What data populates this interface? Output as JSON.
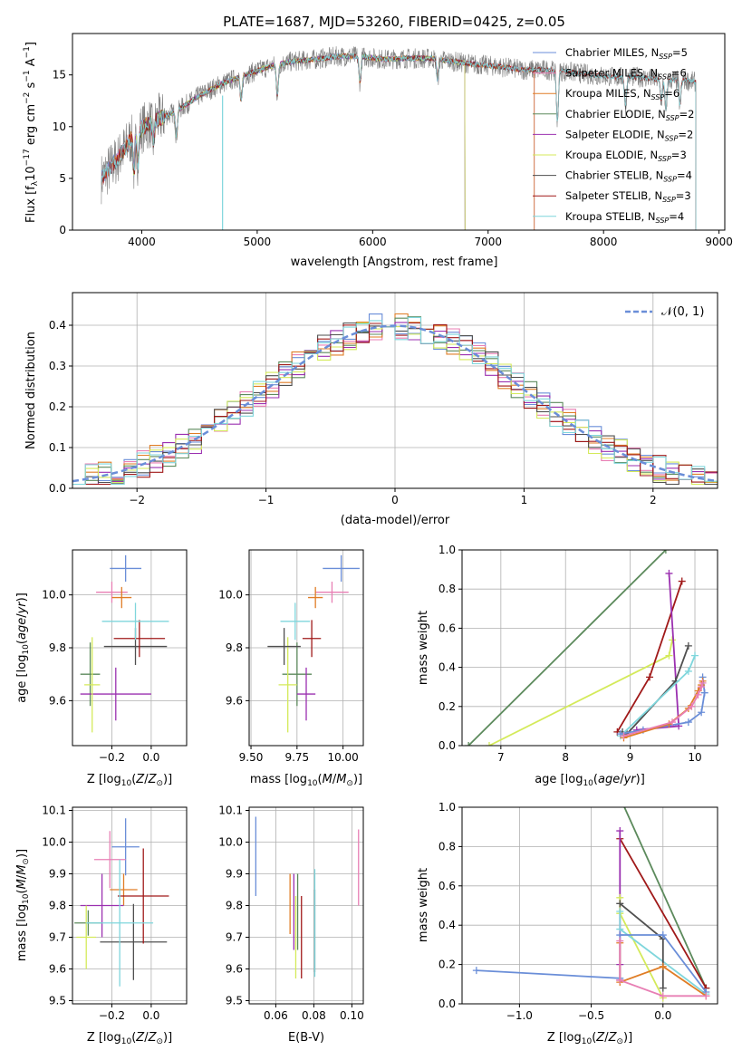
{
  "figure": {
    "title": "PLATE=1687, MJD=53260, FIBERID=0425, z=0.05",
    "colors": {
      "Chabrier MILES": "#6a8ed8",
      "Salpeter MILES": "#e87fb4",
      "Kroupa MILES": "#e07d26",
      "Chabrier ELODIE": "#5c8a5c",
      "Salpeter ELODIE": "#9b30b0",
      "Kroupa ELODIE": "#d4ea5a",
      "Chabrier STELIB": "#4f4f4f",
      "Salpeter STELIB": "#a01919",
      "Kroupa STELIB": "#7fd6dc",
      "spectrum_data": "#808080"
    }
  },
  "chart_data": [
    {
      "id": "spectrum",
      "type": "line",
      "xlabel": "wavelength [Angstrom, rest frame]",
      "ylabel": "Flux [f_λ10^-17 erg cm^-2 s^-1 A^-1]",
      "xlim": [
        3400,
        9050
      ],
      "ylim": [
        0,
        19
      ],
      "xticks": [
        "4000",
        "5000",
        "6000",
        "7000",
        "8000",
        "9000"
      ],
      "yticks": [
        "0",
        "5",
        "10",
        "15"
      ],
      "continuum_x": [
        3650,
        3800,
        3950,
        4100,
        4300,
        4500,
        4700,
        4900,
        5100,
        5300,
        5500,
        5700,
        5900,
        6100,
        6300,
        6500,
        6700,
        6900,
        7100,
        7300,
        7500,
        7700,
        7900,
        8100,
        8300,
        8500,
        8700,
        8800
      ],
      "continuum_y": [
        5.0,
        7.0,
        9.5,
        10.5,
        11.5,
        13.0,
        14.2,
        15.0,
        15.8,
        16.3,
        16.5,
        16.8,
        16.8,
        16.5,
        16.6,
        16.6,
        16.3,
        16.0,
        15.8,
        15.5,
        15.5,
        15.3,
        15.0,
        14.8,
        14.8,
        14.5,
        14.5,
        14.3
      ],
      "legend": [
        {
          "label": "Chabrier MILES",
          "sub": "SSP",
          "n": "5"
        },
        {
          "label": "Salpeter MILES",
          "sub": "SSP",
          "n": "6"
        },
        {
          "label": "Kroupa MILES",
          "sub": "SSP",
          "n": "6"
        },
        {
          "label": "Chabrier ELODIE",
          "sub": "SSP",
          "n": "2"
        },
        {
          "label": "Salpeter ELODIE",
          "sub": "SSP",
          "n": "2"
        },
        {
          "label": "Kroupa ELODIE",
          "sub": "SSP",
          "n": "3"
        },
        {
          "label": "Chabrier STELIB",
          "sub": "SSP",
          "n": "4"
        },
        {
          "label": "Salpeter STELIB",
          "sub": "SSP",
          "n": "3"
        },
        {
          "label": "Kroupa STELIB",
          "sub": "SSP",
          "n": "4"
        }
      ]
    },
    {
      "id": "residuals",
      "type": "histogram",
      "xlabel": "(data-model)/error",
      "ylabel": "Normed distribution",
      "xlim": [
        -2.5,
        2.5
      ],
      "ylim": [
        0,
        0.48
      ],
      "xticks": [
        "−2",
        "−1",
        "0",
        "1",
        "2"
      ],
      "yticks": [
        "0.0",
        "0.1",
        "0.2",
        "0.3",
        "0.4"
      ],
      "bin_width": 0.1,
      "bin_start": -2.5,
      "legend_label": "𝒩(0, 1)"
    },
    {
      "id": "age_vs_Z",
      "type": "errorbar",
      "xlabel": "Z [log10(Z/Z⊙)]",
      "ylabel": "age [log10(age/yr)]",
      "xlim": [
        -0.4,
        0.18
      ],
      "ylim": [
        9.43,
        10.17
      ],
      "xticks": [
        "−0.2",
        "0.0"
      ],
      "yticks": [
        "9.6",
        "9.8",
        "10.0"
      ],
      "points": [
        {
          "m": "Chabrier MILES",
          "x": -0.13,
          "y": 10.1,
          "xe": 0.08,
          "ye": 0.05
        },
        {
          "m": "Salpeter MILES",
          "x": -0.2,
          "y": 10.01,
          "xe": 0.08,
          "ye": 0.04
        },
        {
          "m": "Kroupa MILES",
          "x": -0.15,
          "y": 9.99,
          "xe": 0.05,
          "ye": 0.04
        },
        {
          "m": "Chabrier ELODIE",
          "x": -0.31,
          "y": 9.7,
          "xe": 0.05,
          "ye": 0.12
        },
        {
          "m": "Salpeter ELODIE",
          "x": -0.18,
          "y": 9.625,
          "xe": 0.18,
          "ye": 0.1
        },
        {
          "m": "Kroupa ELODIE",
          "x": -0.3,
          "y": 9.66,
          "xe": 0.04,
          "ye": 0.18
        },
        {
          "m": "Chabrier STELIB",
          "x": -0.08,
          "y": 9.805,
          "xe": 0.16,
          "ye": 0.07
        },
        {
          "m": "Salpeter STELIB",
          "x": -0.06,
          "y": 9.835,
          "xe": 0.13,
          "ye": 0.07
        },
        {
          "m": "Kroupa STELIB",
          "x": -0.08,
          "y": 9.9,
          "xe": 0.17,
          "ye": 0.07
        }
      ]
    },
    {
      "id": "age_vs_mass",
      "type": "errorbar",
      "xlabel": "mass [log10(M/M⊙)]",
      "xlim": [
        9.49,
        10.11
      ],
      "ylim": [
        9.43,
        10.17
      ],
      "xticks": [
        "9.50",
        "9.75",
        "10.00"
      ],
      "yticks": [
        "9.6",
        "9.8",
        "10.0"
      ],
      "points": [
        {
          "m": "Chabrier MILES",
          "x": 9.99,
          "y": 10.1,
          "xe": 0.1,
          "ye": 0.05
        },
        {
          "m": "Salpeter MILES",
          "x": 9.94,
          "y": 10.01,
          "xe": 0.09,
          "ye": 0.04
        },
        {
          "m": "Kroupa MILES",
          "x": 9.85,
          "y": 9.99,
          "xe": 0.04,
          "ye": 0.04
        },
        {
          "m": "Chabrier ELODIE",
          "x": 9.75,
          "y": 9.7,
          "xe": 0.08,
          "ye": 0.12
        },
        {
          "m": "Salpeter ELODIE",
          "x": 9.8,
          "y": 9.625,
          "xe": 0.05,
          "ye": 0.1
        },
        {
          "m": "Kroupa ELODIE",
          "x": 9.7,
          "y": 9.66,
          "xe": 0.05,
          "ye": 0.18
        },
        {
          "m": "Chabrier STELIB",
          "x": 9.68,
          "y": 9.805,
          "xe": 0.09,
          "ye": 0.07
        },
        {
          "m": "Salpeter STELIB",
          "x": 9.83,
          "y": 9.835,
          "xe": 0.05,
          "ye": 0.07
        },
        {
          "m": "Kroupa STELIB",
          "x": 9.74,
          "y": 9.9,
          "xe": 0.08,
          "ye": 0.07
        }
      ]
    },
    {
      "id": "weight_vs_age",
      "type": "line",
      "xlabel": "age [log10(age/yr)]",
      "ylabel": "mass weight",
      "xlim": [
        6.4,
        10.35
      ],
      "ylim": [
        0,
        1
      ],
      "xticks": [
        "7",
        "8",
        "9",
        "10"
      ],
      "yticks": [
        "0.0",
        "0.2",
        "0.4",
        "0.6",
        "0.8",
        "1.0"
      ],
      "series": [
        {
          "m": "Chabrier ELODIE",
          "x": [
            6.5,
            9.55
          ],
          "y": [
            0.0,
            1.0
          ]
        },
        {
          "m": "Kroupa ELODIE",
          "x": [
            6.82,
            9.6,
            9.65
          ],
          "y": [
            0.0,
            0.46,
            0.54
          ]
        },
        {
          "m": "Salpeter STELIB",
          "x": [
            8.8,
            9.3,
            9.8
          ],
          "y": [
            0.07,
            0.35,
            0.84
          ]
        },
        {
          "m": "Salpeter ELODIE",
          "x": [
            9.6,
            9.75,
            9.1
          ],
          "y": [
            0.88,
            0.1,
            0.08
          ]
        },
        {
          "m": "Chabrier STELIB",
          "x": [
            8.88,
            8.95,
            9.7,
            9.9
          ],
          "y": [
            0.07,
            0.06,
            0.33,
            0.51
          ]
        },
        {
          "m": "Kroupa STELIB",
          "x": [
            8.85,
            9.9,
            10.0
          ],
          "y": [
            0.05,
            0.38,
            0.46
          ]
        },
        {
          "m": "Chabrier MILES",
          "x": [
            8.85,
            9.2,
            9.9,
            10.1,
            10.15,
            10.12
          ],
          "y": [
            0.06,
            0.08,
            0.12,
            0.17,
            0.27,
            0.35
          ]
        },
        {
          "m": "Kroupa MILES",
          "x": [
            8.9,
            9.6,
            9.9,
            10.05,
            10.1,
            10.12
          ],
          "y": [
            0.04,
            0.11,
            0.19,
            0.28,
            0.31,
            0.33
          ]
        },
        {
          "m": "Salpeter MILES",
          "x": [
            8.9,
            9.65,
            9.95,
            10.05,
            10.1,
            10.12
          ],
          "y": [
            0.05,
            0.12,
            0.2,
            0.26,
            0.3,
            0.32
          ]
        }
      ]
    },
    {
      "id": "mass_vs_Z",
      "type": "errorbar",
      "xlabel": "Z [log10(Z/Z⊙)]",
      "ylabel": "mass [log10(M/M⊙)]",
      "xlim": [
        -0.4,
        0.18
      ],
      "ylim": [
        9.49,
        10.11
      ],
      "xticks": [
        "−0.2",
        "0.0"
      ],
      "yticks": [
        "9.5",
        "9.6",
        "9.7",
        "9.8",
        "9.9",
        "10.0",
        "10.1"
      ],
      "points": [
        {
          "m": "Chabrier MILES",
          "x": -0.13,
          "y": 9.985,
          "xe": 0.07,
          "ye": 0.09
        },
        {
          "m": "Salpeter MILES",
          "x": -0.21,
          "y": 9.945,
          "xe": 0.08,
          "ye": 0.09
        },
        {
          "m": "Kroupa MILES",
          "x": -0.14,
          "y": 9.85,
          "xe": 0.07,
          "ye": 0.05
        },
        {
          "m": "Chabrier ELODIE",
          "x": -0.32,
          "y": 9.745,
          "xe": 0.07,
          "ye": 0.04
        },
        {
          "m": "Salpeter ELODIE",
          "x": -0.25,
          "y": 9.8,
          "xe": 0.11,
          "ye": 0.1
        },
        {
          "m": "Kroupa ELODIE",
          "x": -0.33,
          "y": 9.7,
          "xe": 0.05,
          "ye": 0.1
        },
        {
          "m": "Chabrier STELIB",
          "x": -0.09,
          "y": 9.685,
          "xe": 0.17,
          "ye": 0.12
        },
        {
          "m": "Salpeter STELIB",
          "x": -0.04,
          "y": 9.83,
          "xe": 0.13,
          "ye": 0.15
        },
        {
          "m": "Kroupa STELIB",
          "x": -0.16,
          "y": 9.745,
          "xe": 0.17,
          "ye": 0.2
        }
      ]
    },
    {
      "id": "mass_vs_ebv",
      "type": "errorbar",
      "xlabel": "E(B-V)",
      "xlim": [
        0.046,
        0.106
      ],
      "ylim": [
        9.49,
        10.11
      ],
      "xticks": [
        "0.06",
        "0.08",
        "0.10"
      ],
      "yticks": [
        "9.5",
        "9.6",
        "9.7",
        "9.8",
        "9.9",
        "10.0",
        "10.1"
      ],
      "points": [
        {
          "m": "Chabrier MILES",
          "x": 0.0495,
          "y": 9.955,
          "xe": 0,
          "ye": 0.125
        },
        {
          "m": "Salpeter MILES",
          "x": 0.1035,
          "y": 9.92,
          "xe": 0,
          "ye": 0.12
        },
        {
          "m": "Kroupa MILES",
          "x": 0.0675,
          "y": 9.805,
          "xe": 0,
          "ye": 0.095
        },
        {
          "m": "Chabrier ELODIE",
          "x": 0.0715,
          "y": 9.78,
          "xe": 0,
          "ye": 0.12
        },
        {
          "m": "Salpeter ELODIE",
          "x": 0.0695,
          "y": 9.78,
          "xe": 0,
          "ye": 0.12
        },
        {
          "m": "Kroupa ELODIE",
          "x": 0.0705,
          "y": 9.7,
          "xe": 0,
          "ye": 0.13
        },
        {
          "m": "Chabrier STELIB",
          "x": 0.0805,
          "y": 9.72,
          "xe": 0,
          "ye": 0.13
        },
        {
          "m": "Salpeter STELIB",
          "x": 0.0735,
          "y": 9.7,
          "xe": 0,
          "ye": 0.13
        },
        {
          "m": "Kroupa STELIB",
          "x": 0.0805,
          "y": 9.745,
          "xe": 0,
          "ye": 0.17
        }
      ]
    },
    {
      "id": "weight_vs_Z",
      "type": "line",
      "xlabel": "Z [log10(Z/Z⊙)]",
      "ylabel": "mass weight",
      "xlim": [
        -1.4,
        0.38
      ],
      "ylim": [
        0,
        1
      ],
      "xticks": [
        "−1.0",
        "−0.5",
        "0.0"
      ],
      "yticks": [
        "0.0",
        "0.2",
        "0.4",
        "0.6",
        "0.8",
        "1.0"
      ],
      "series": [
        {
          "m": "Chabrier ELODIE",
          "x": [
            -0.3,
            0.3
          ],
          "y": [
            1.05,
            0.08
          ]
        },
        {
          "m": "Salpeter STELIB",
          "x": [
            -0.3,
            0.3
          ],
          "y": [
            0.84,
            0.08
          ]
        },
        {
          "m": "Salpeter ELODIE",
          "x": [
            -0.3,
            -0.3,
            -0.3
          ],
          "y": [
            0.88,
            0.2,
            0.12
          ]
        },
        {
          "m": "Kroupa ELODIE",
          "x": [
            -0.3,
            -0.3,
            0.0
          ],
          "y": [
            0.54,
            0.46,
            0.03
          ]
        },
        {
          "m": "Kroupa STELIB",
          "x": [
            -0.3,
            -0.3,
            0.3
          ],
          "y": [
            0.47,
            0.38,
            0.05
          ]
        },
        {
          "m": "Chabrier STELIB",
          "x": [
            -0.3,
            0.0,
            0.0
          ],
          "y": [
            0.51,
            0.33,
            0.08
          ]
        },
        {
          "m": "Chabrier MILES",
          "x": [
            -1.3,
            -0.3,
            -0.3,
            0.0,
            0.3
          ],
          "y": [
            0.17,
            0.13,
            0.35,
            0.35,
            0.06
          ]
        },
        {
          "m": "Kroupa MILES",
          "x": [
            -0.3,
            -0.3,
            0.0,
            0.3
          ],
          "y": [
            0.31,
            0.11,
            0.19,
            0.04
          ]
        },
        {
          "m": "Salpeter MILES",
          "x": [
            -0.3,
            -0.3,
            0.0,
            0.3
          ],
          "y": [
            0.32,
            0.12,
            0.04,
            0.04
          ]
        }
      ]
    }
  ]
}
